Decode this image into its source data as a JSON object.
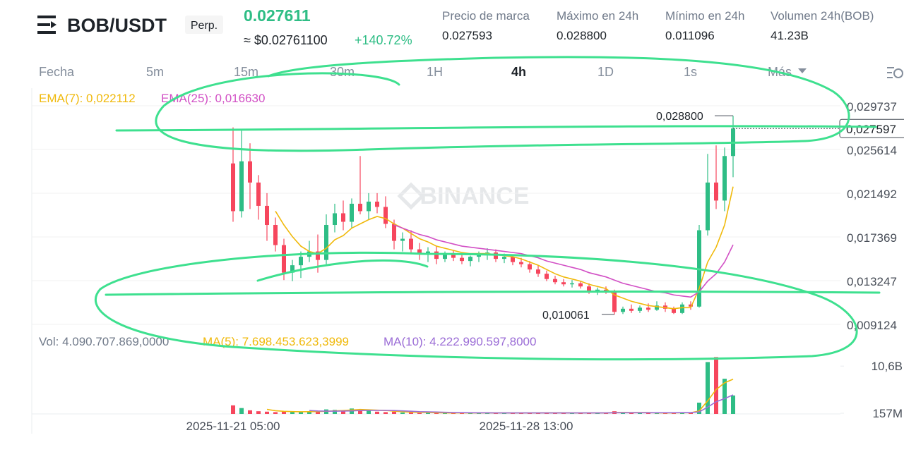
{
  "header": {
    "symbol": "BOB/USDT",
    "contract": "Perp.",
    "last_price": "0.027611",
    "usd_price": "≈ $0.02761100",
    "change": "+140.72%",
    "stats": [
      {
        "label": "Precio de marca",
        "value": "0.027593"
      },
      {
        "label": "Máximo en 24h",
        "value": "0.028800"
      },
      {
        "label": "Mínimo en 24h",
        "value": "0.011096"
      },
      {
        "label": "Volumen 24h(BOB)",
        "value": "41.23B"
      }
    ]
  },
  "tabs": [
    "Fecha",
    "5m",
    "15m",
    "30m",
    "1H",
    "4h",
    "1D",
    "1s",
    "Más"
  ],
  "chart_data": {
    "type": "candlestick",
    "watermark": "BINANCE",
    "up_color": "#2ebd85",
    "down_color": "#f6465d",
    "ylim": [
      0.00846,
      0.0314
    ],
    "yticks": [
      {
        "value": 0.029737,
        "label": "0,029737"
      },
      {
        "value": 0.025614,
        "label": "0,025614"
      },
      {
        "value": 0.021492,
        "label": "0,021492"
      },
      {
        "value": 0.017369,
        "label": "0,017369"
      },
      {
        "value": 0.013247,
        "label": "0,013247"
      },
      {
        "value": 0.009124,
        "label": "0,009124"
      }
    ],
    "grid": true,
    "current_price": {
      "value": 0.027597,
      "label": "0,027597"
    },
    "high_marker": {
      "value": 0.0288,
      "label": "0,028800"
    },
    "low_marker": {
      "value": 0.010061,
      "label": "0,010061"
    },
    "x_labels": [
      "2025-11-21 05:00",
      "2025-11-28 13:00"
    ],
    "candles": [
      [
        0.0243,
        0.0277,
        0.0188,
        0.0198
      ],
      [
        0.0198,
        0.0274,
        0.0192,
        0.0245
      ],
      [
        0.0245,
        0.0262,
        0.02,
        0.0225
      ],
      [
        0.0225,
        0.0232,
        0.019,
        0.0203
      ],
      [
        0.0203,
        0.0215,
        0.017,
        0.0185
      ],
      [
        0.0185,
        0.0192,
        0.016,
        0.0166
      ],
      [
        0.0166,
        0.0172,
        0.0133,
        0.014
      ],
      [
        0.014,
        0.0152,
        0.0132,
        0.0147
      ],
      [
        0.0147,
        0.016,
        0.0135,
        0.0155
      ],
      [
        0.0155,
        0.017,
        0.015,
        0.016
      ],
      [
        0.016,
        0.0176,
        0.014,
        0.0152
      ],
      [
        0.0152,
        0.0195,
        0.0148,
        0.0185
      ],
      [
        0.0185,
        0.0205,
        0.0178,
        0.0196
      ],
      [
        0.0196,
        0.0208,
        0.018,
        0.0188
      ],
      [
        0.0188,
        0.021,
        0.0182,
        0.0205
      ],
      [
        0.0205,
        0.025,
        0.0195,
        0.0198
      ],
      [
        0.0198,
        0.0215,
        0.019,
        0.0207
      ],
      [
        0.0207,
        0.0215,
        0.0196,
        0.0202
      ],
      [
        0.0202,
        0.0212,
        0.0182,
        0.0186
      ],
      [
        0.0186,
        0.019,
        0.0162,
        0.017
      ],
      [
        0.017,
        0.0178,
        0.016,
        0.0172
      ],
      [
        0.0172,
        0.018,
        0.0158,
        0.0162
      ],
      [
        0.0162,
        0.0168,
        0.0152,
        0.0158
      ],
      [
        0.0158,
        0.0164,
        0.015,
        0.016
      ],
      [
        0.016,
        0.0165,
        0.0148,
        0.0153
      ],
      [
        0.0153,
        0.016,
        0.015,
        0.0157
      ],
      [
        0.0157,
        0.0161,
        0.0151,
        0.0154
      ],
      [
        0.0154,
        0.0158,
        0.0148,
        0.0151
      ],
      [
        0.0151,
        0.0156,
        0.0146,
        0.0155
      ],
      [
        0.0155,
        0.016,
        0.015,
        0.0157
      ],
      [
        0.0157,
        0.0163,
        0.0152,
        0.0159
      ],
      [
        0.0159,
        0.0162,
        0.015,
        0.0153
      ],
      [
        0.0153,
        0.0158,
        0.0149,
        0.0155
      ],
      [
        0.0155,
        0.0157,
        0.0147,
        0.015
      ],
      [
        0.015,
        0.0154,
        0.0145,
        0.0148
      ],
      [
        0.0148,
        0.0151,
        0.014,
        0.0143
      ],
      [
        0.0143,
        0.0147,
        0.0136,
        0.0139
      ],
      [
        0.0139,
        0.0142,
        0.0132,
        0.0134
      ],
      [
        0.0134,
        0.0137,
        0.0129,
        0.0131
      ],
      [
        0.0131,
        0.0134,
        0.0127,
        0.0129
      ],
      [
        0.0129,
        0.0133,
        0.0126,
        0.013
      ],
      [
        0.013,
        0.0132,
        0.0125,
        0.0127
      ],
      [
        0.0127,
        0.013,
        0.012,
        0.0122
      ],
      [
        0.0122,
        0.0126,
        0.0119,
        0.0124
      ],
      [
        0.0124,
        0.0127,
        0.012,
        0.0122
      ],
      [
        0.0122,
        0.0124,
        0.010061,
        0.0103
      ],
      [
        0.0103,
        0.0108,
        0.0101,
        0.0106
      ],
      [
        0.0106,
        0.011,
        0.0102,
        0.0104
      ],
      [
        0.0104,
        0.0109,
        0.0102,
        0.0107
      ],
      [
        0.0107,
        0.0111,
        0.0103,
        0.0105
      ],
      [
        0.0105,
        0.0113,
        0.0104,
        0.0109
      ],
      [
        0.0109,
        0.0112,
        0.0103,
        0.0106
      ],
      [
        0.0106,
        0.0108,
        0.0101,
        0.0102
      ],
      [
        0.0102,
        0.0112,
        0.0101,
        0.011
      ],
      [
        0.011,
        0.0113,
        0.0105,
        0.0108
      ],
      [
        0.0108,
        0.0185,
        0.0107,
        0.018
      ],
      [
        0.018,
        0.0252,
        0.0175,
        0.0225
      ],
      [
        0.0225,
        0.026,
        0.02,
        0.0208
      ],
      [
        0.0208,
        0.0258,
        0.0198,
        0.025
      ],
      [
        0.025,
        0.0288,
        0.023,
        0.027597
      ]
    ],
    "series": [
      {
        "name": "EMA(7)",
        "label": "EMA(7): 0,022112",
        "color": "#f0b90b",
        "values": [
          null,
          null,
          null,
          null,
          null,
          0.0198,
          0.0185,
          0.0174,
          0.0165,
          0.016,
          0.0158,
          0.0163,
          0.0171,
          0.0175,
          0.0182,
          0.0186,
          0.019,
          0.0193,
          0.0191,
          0.0186,
          0.0182,
          0.0177,
          0.0172,
          0.0169,
          0.0165,
          0.0163,
          0.0161,
          0.0159,
          0.0158,
          0.0158,
          0.0158,
          0.0157,
          0.0156,
          0.0155,
          0.0153,
          0.015,
          0.0147,
          0.0143,
          0.0139,
          0.0136,
          0.0134,
          0.0132,
          0.0129,
          0.0127,
          0.0125,
          0.0119,
          0.0116,
          0.0113,
          0.0111,
          0.0109,
          0.0108,
          0.0107,
          0.0106,
          0.0107,
          0.0107,
          0.0125,
          0.015,
          0.0164,
          0.0185,
          0.022112
        ]
      },
      {
        "name": "EMA(25)",
        "label": "EMA(25): 0,016630",
        "color": "#d250c5",
        "values": [
          null,
          null,
          null,
          null,
          null,
          null,
          null,
          null,
          null,
          null,
          null,
          null,
          null,
          null,
          null,
          null,
          null,
          null,
          null,
          0.0185,
          0.0182,
          0.0179,
          0.0176,
          0.0174,
          0.0171,
          0.0169,
          0.0167,
          0.0165,
          0.0164,
          0.0163,
          0.0162,
          0.0161,
          0.016,
          0.0159,
          0.0158,
          0.0156,
          0.0154,
          0.0151,
          0.0149,
          0.0147,
          0.0145,
          0.0143,
          0.014,
          0.0138,
          0.0136,
          0.0133,
          0.013,
          0.0128,
          0.0126,
          0.0124,
          0.0122,
          0.0121,
          0.0119,
          0.0118,
          0.0117,
          0.0122,
          0.0132,
          0.0139,
          0.015,
          0.01663
        ]
      }
    ],
    "volume": {
      "label": "Vol: 4.090.707.869,0000",
      "ylim": [
        0,
        13600000000
      ],
      "yticks": [
        {
          "value": 10600000000,
          "label": "10,6B"
        },
        {
          "value": 157000000,
          "label": "157M"
        }
      ],
      "values": [
        1900000000.0,
        1300000000.0,
        800000000.0,
        600000000.0,
        500000000.0,
        400000000.0,
        600000000.0,
        500000000.0,
        400000000.0,
        600000000.0,
        500000000.0,
        1000000000.0,
        900000000.0,
        800000000.0,
        1200000000.0,
        1000000000.0,
        700000000.0,
        500000000.0,
        400000000.0,
        500000000.0,
        300000000.0,
        300000000.0,
        200000000.0,
        300000000.0,
        200000000.0,
        200000000.0,
        200000000.0,
        300000000.0,
        200000000.0,
        200000000.0,
        300000000.0,
        200000000.0,
        200000000.0,
        200000000.0,
        200000000.0,
        300000000.0,
        200000000.0,
        300000000.0,
        200000000.0,
        200000000.0,
        200000000.0,
        200000000.0,
        300000000.0,
        200000000.0,
        200000000.0,
        600000000.0,
        300000000.0,
        200000000.0,
        200000000.0,
        200000000.0,
        300000000.0,
        200000000.0,
        300000000.0,
        300000000.0,
        200000000.0,
        2500000000.0,
        11500000000.0,
        12600000000.0,
        7800000000.0,
        4090707869
      ],
      "series": [
        {
          "name": "MA(5)",
          "label": "MA(5): 7.698.453.623,3999",
          "color": "#f0b90b",
          "values": [
            null,
            null,
            null,
            null,
            1000000000.0,
            720000000.0,
            580000000.0,
            520000000.0,
            480000000.0,
            500000000.0,
            520000000.0,
            600000000.0,
            680000000.0,
            760000000.0,
            880000000.0,
            980000000.0,
            920000000.0,
            840000000.0,
            760000000.0,
            620000000.0,
            480000000.0,
            400000000.0,
            340000000.0,
            320000000.0,
            260000000.0,
            240000000.0,
            220000000.0,
            240000000.0,
            220000000.0,
            220000000.0,
            240000000.0,
            220000000.0,
            220000000.0,
            220000000.0,
            220000000.0,
            220000000.0,
            220000000.0,
            240000000.0,
            240000000.0,
            240000000.0,
            220000000.0,
            220000000.0,
            220000000.0,
            220000000.0,
            220000000.0,
            300000000.0,
            320000000.0,
            300000000.0,
            300000000.0,
            300000000.0,
            240000000.0,
            220000000.0,
            240000000.0,
            260000000.0,
            260000000.0,
            660000000.0,
            2900000000.0,
            5400000000.0,
            6900000000.0,
            7698453623.3999
          ]
        },
        {
          "name": "MA(10)",
          "label": "MA(10): 4.222.990.597,8000",
          "color": "#9b6dd6",
          "values": [
            null,
            null,
            null,
            null,
            null,
            null,
            null,
            null,
            null,
            760000000.0,
            650000000.0,
            610000000.0,
            620000000.0,
            640000000.0,
            680000000.0,
            750000000.0,
            780000000.0,
            780000000.0,
            780000000.0,
            750000000.0,
            680000000.0,
            590000000.0,
            500000000.0,
            460000000.0,
            420000000.0,
            360000000.0,
            310000000.0,
            280000000.0,
            260000000.0,
            240000000.0,
            240000000.0,
            230000000.0,
            230000000.0,
            230000000.0,
            220000000.0,
            230000000.0,
            220000000.0,
            230000000.0,
            230000000.0,
            230000000.0,
            220000000.0,
            220000000.0,
            230000000.0,
            230000000.0,
            220000000.0,
            260000000.0,
            270000000.0,
            260000000.0,
            260000000.0,
            260000000.0,
            270000000.0,
            270000000.0,
            270000000.0,
            280000000.0,
            280000000.0,
            460000000.0,
            1500000000.0,
            2700000000.0,
            3400000000.0,
            4222990597.8
          ]
        }
      ]
    }
  }
}
